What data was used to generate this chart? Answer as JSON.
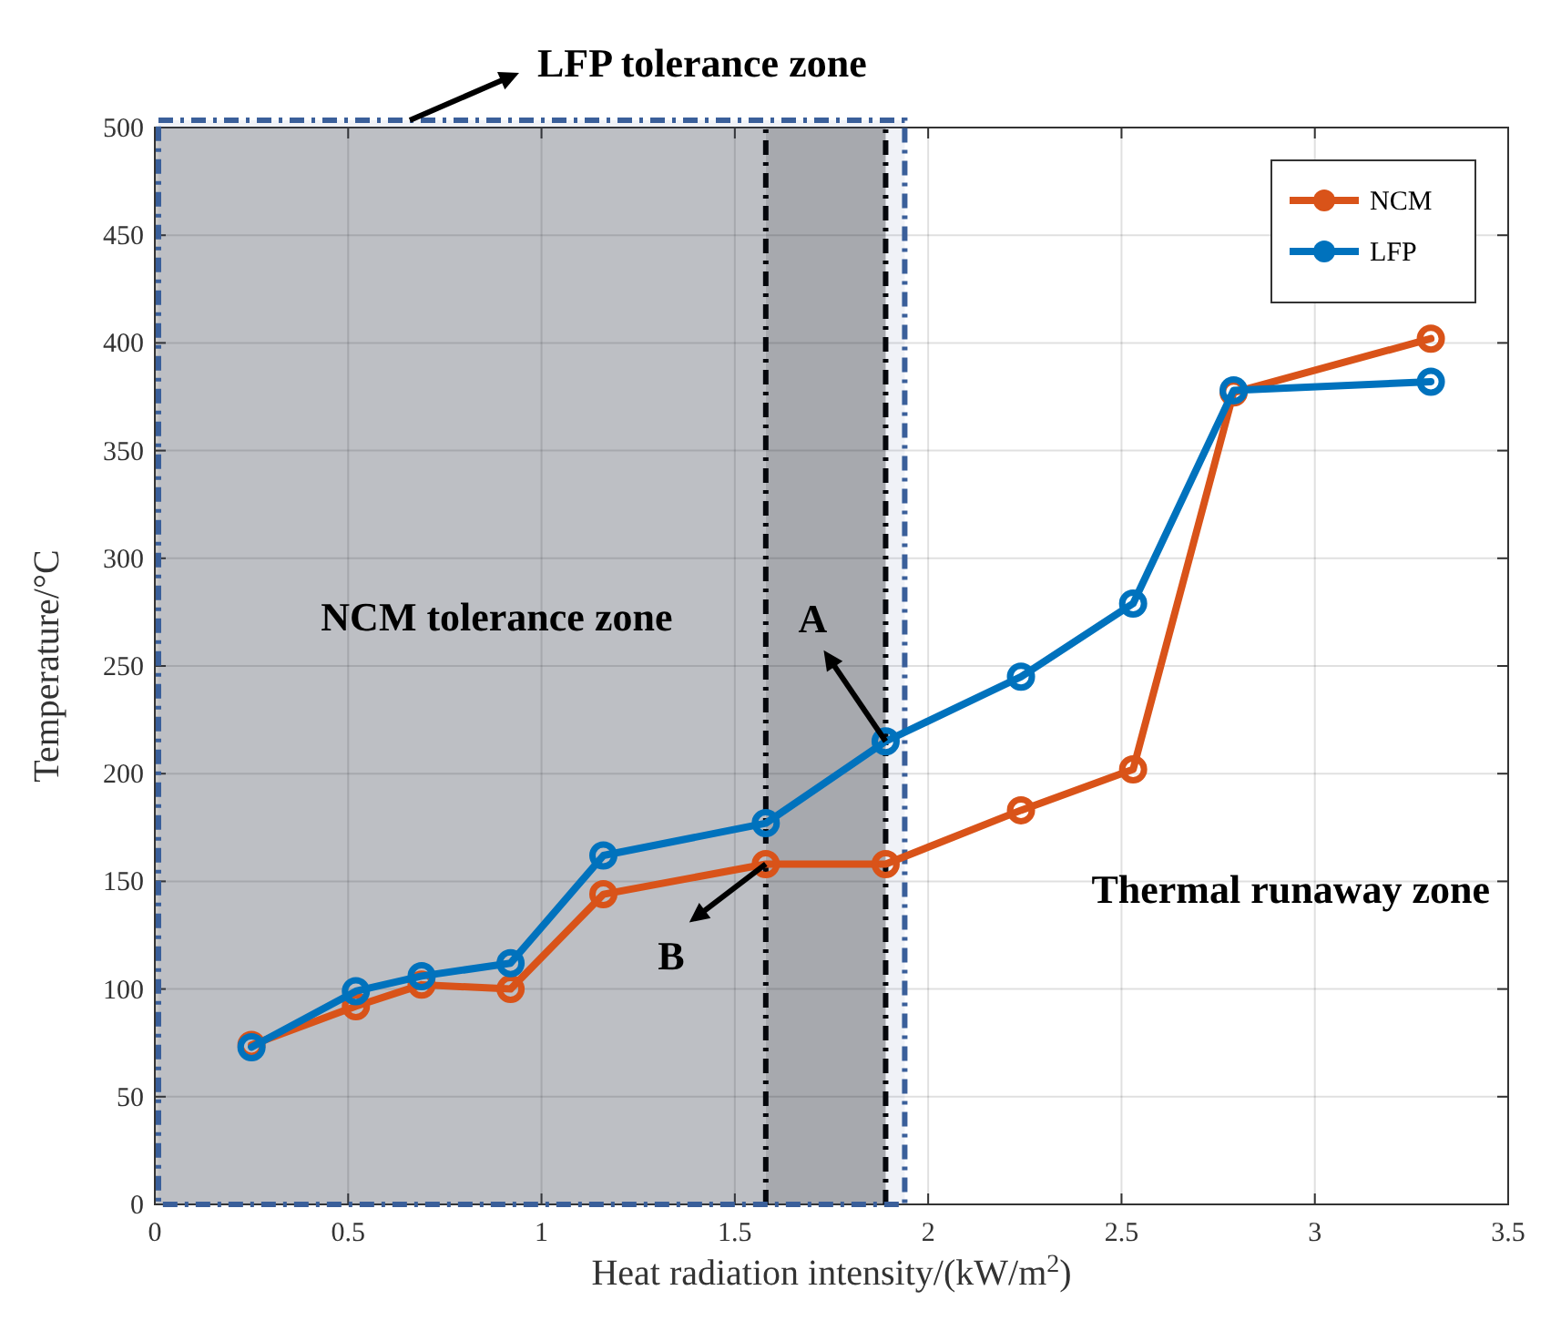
{
  "chart_data": {
    "type": "line",
    "xlabel": "Heat radiation intensity/(kW/m$^{2}$)",
    "ylabel": "Temperature/°C",
    "x": [
      0.25,
      0.52,
      0.69,
      0.92,
      1.16,
      1.58,
      1.89,
      2.24,
      2.53,
      2.79,
      3.3
    ],
    "series": [
      {
        "name": "NCM",
        "color": "#d95319",
        "values": [
          74,
          92,
          102,
          100,
          144,
          158,
          158,
          183,
          202,
          377,
          402
        ]
      },
      {
        "name": "LFP",
        "color": "#0072bd",
        "values": [
          73,
          99,
          106,
          112,
          162,
          177,
          215,
          245,
          279,
          378,
          382
        ]
      }
    ],
    "xlim": [
      0,
      3.5
    ],
    "xticks": [
      0,
      0.5,
      1,
      1.5,
      2,
      2.5,
      3,
      3.5
    ],
    "ylim": [
      0,
      500
    ],
    "yticks": [
      0,
      50,
      100,
      150,
      200,
      250,
      300,
      350,
      400,
      450,
      500
    ],
    "grid": true,
    "legend": "top right",
    "marker": "circle",
    "line_style": "solid",
    "bands": [
      {
        "axis": "x",
        "from": 0,
        "to": 1.58,
        "label": "NCM tolerance zone",
        "color": "#c8c8c8"
      },
      {
        "axis": "x",
        "from": 1.58,
        "to": 1.89,
        "color": "#b0b0b0"
      },
      {
        "axis": "x",
        "from": 0,
        "to": 1.93,
        "label": "LFP tolerance zone",
        "color": "#3a5f9a"
      }
    ],
    "ref_lines": [
      {
        "axis": "x",
        "value": 1.58,
        "color": "#000000",
        "line_style": "dashed"
      },
      {
        "axis": "x",
        "value": 1.89,
        "color": "#000000",
        "line_style": "dashed"
      }
    ],
    "annotations": [
      {
        "text": "A",
        "x": 1.89,
        "y": 215
      },
      {
        "text": "B",
        "x": 1.58,
        "y": 158
      },
      "Thermal runaway zone"
    ]
  }
}
